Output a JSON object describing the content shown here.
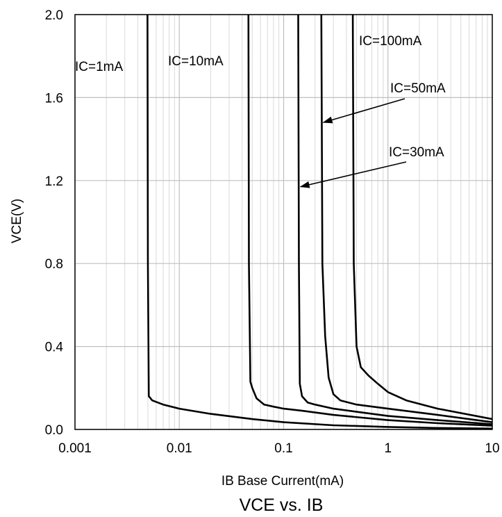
{
  "chart_data": {
    "type": "line",
    "title": "VCE vs. IB",
    "xlabel": "IB Base Current(mA)",
    "ylabel": "VCE(V)",
    "x_scale": "log",
    "xlim": [
      0.001,
      10
    ],
    "ylim": [
      0,
      2.0
    ],
    "x_ticks": [
      0.001,
      0.01,
      0.1,
      1,
      10
    ],
    "x_tick_labels": [
      "0.001",
      "0.01",
      "0.1",
      "1",
      "10"
    ],
    "y_ticks": [
      0,
      0.4,
      0.8,
      1.2,
      1.6,
      2.0
    ],
    "y_tick_labels": [
      "0.0",
      "0.4",
      "0.8",
      "1.2",
      "1.6",
      "2.0"
    ],
    "grid": true,
    "line_color": "#000000",
    "series": [
      {
        "name": "IC=1mA",
        "x": [
          0.00495,
          0.005,
          0.0051,
          0.0055,
          0.007,
          0.01,
          0.02,
          0.05,
          0.1,
          0.3,
          1,
          3,
          10
        ],
        "y": [
          2.0,
          0.8,
          0.16,
          0.14,
          0.12,
          0.1,
          0.075,
          0.05,
          0.035,
          0.02,
          0.012,
          0.007,
          0.004
        ]
      },
      {
        "name": "IC=10mA",
        "x": [
          0.046,
          0.0465,
          0.048,
          0.05,
          0.055,
          0.065,
          0.08,
          0.1,
          0.15,
          0.3,
          1,
          3,
          10
        ],
        "y": [
          2.0,
          0.8,
          0.23,
          0.2,
          0.15,
          0.12,
          0.11,
          0.1,
          0.09,
          0.07,
          0.045,
          0.03,
          0.018
        ]
      },
      {
        "name": "IC=30mA",
        "x": [
          0.138,
          0.14,
          0.143,
          0.15,
          0.17,
          0.2,
          0.3,
          0.5,
          1,
          3,
          10
        ],
        "y": [
          2.0,
          0.8,
          0.22,
          0.16,
          0.13,
          0.12,
          0.1,
          0.085,
          0.065,
          0.045,
          0.025
        ]
      },
      {
        "name": "IC=50mA",
        "x": [
          0.23,
          0.235,
          0.25,
          0.27,
          0.3,
          0.35,
          0.5,
          1,
          3,
          10
        ],
        "y": [
          2.0,
          0.8,
          0.45,
          0.25,
          0.17,
          0.14,
          0.12,
          0.1,
          0.07,
          0.035
        ]
      },
      {
        "name": "IC=100mA",
        "x": [
          0.46,
          0.47,
          0.5,
          0.55,
          0.65,
          0.8,
          1,
          1.5,
          3,
          10
        ],
        "y": [
          2.0,
          0.8,
          0.4,
          0.3,
          0.26,
          0.22,
          0.18,
          0.14,
          0.1,
          0.05
        ]
      }
    ],
    "annotations": [
      {
        "text": "IC=1mA",
        "series": "IC=1mA"
      },
      {
        "text": "IC=10mA",
        "series": "IC=10mA"
      },
      {
        "text": "IC=100mA",
        "series": "IC=100mA"
      },
      {
        "text": "IC=50mA",
        "series": "IC=50mA",
        "arrow_to": [
          0.24,
          1.48
        ]
      },
      {
        "text": "IC=30mA",
        "series": "IC=30mA",
        "arrow_to": [
          0.145,
          1.17
        ]
      }
    ]
  }
}
